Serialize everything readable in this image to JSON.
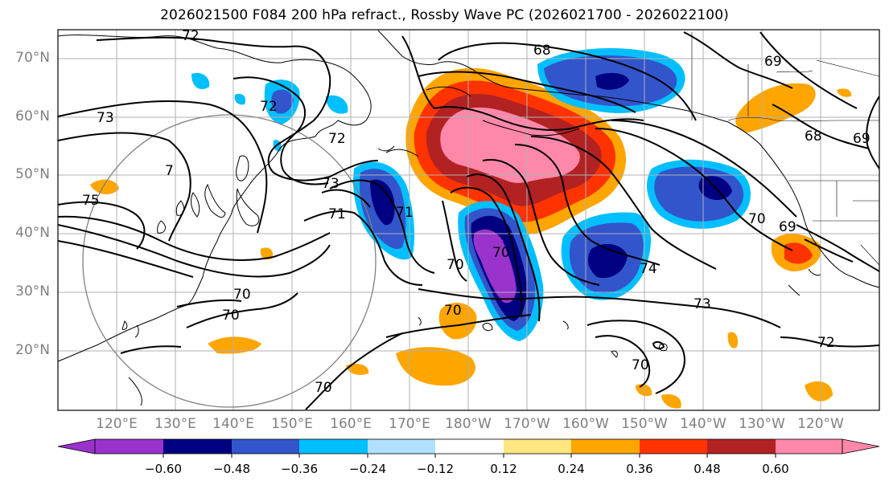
{
  "title": "2026021500 F084 200 hPa refract., Rossby Wave PC (2026021700 - 2026022100)",
  "lat_labels": [
    "70°N",
    "60°N",
    "50°N",
    "40°N",
    "30°N",
    "20°N"
  ],
  "lon_labels": [
    "120°E",
    "130°E",
    "140°E",
    "150°E",
    "160°E",
    "170°E",
    "180°W",
    "170°W",
    "160°W",
    "150°W",
    "140°W",
    "130°W",
    "120°W"
  ],
  "contour_labels": [
    "72",
    "68",
    "73",
    "72",
    "72",
    "75",
    "7",
    "73",
    "71",
    "71",
    "70",
    "70",
    "70",
    "70",
    "70",
    "70",
    "73",
    "74",
    "70",
    "69",
    "68",
    "69",
    "72",
    "70",
    "69"
  ],
  "colorbar": {
    "colors": [
      "#9933cc",
      "#000080",
      "#3355cc",
      "#00bfff",
      "#b0e0ff",
      "#ffffff",
      "#ffe680",
      "#ffa500",
      "#ff3300",
      "#b22222",
      "#ff88aa"
    ],
    "under_color": "#9933cc",
    "over_color": "#ff88aa",
    "tick_labels": [
      "−0.60",
      "−0.48",
      "−0.36",
      "−0.24",
      "−0.12",
      "0.12",
      "0.24",
      "0.36",
      "0.48",
      "0.60"
    ]
  }
}
